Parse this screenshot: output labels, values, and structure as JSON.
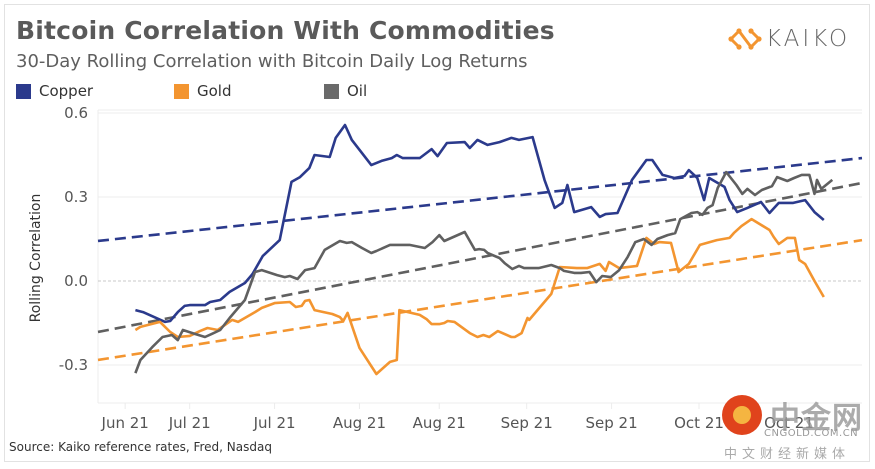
{
  "header": {
    "title": "Bitcoin Correlation With Commodities",
    "subtitle": "30-Day Rolling Correlation with Bitcoin Daily Log Returns",
    "logo_text": "KAIKO"
  },
  "footer": {
    "source": "Source: Kaiko reference rates, Fred, Nasdaq"
  },
  "watermark": {
    "name_cn": "中金网",
    "url": "CNGOLD.COM.CN",
    "tagline": "中文财经新媒体"
  },
  "colors": {
    "copper": "#2b3a8c",
    "gold": "#f39530",
    "oil": "#606060",
    "grid": "#ececec",
    "zero_line": "#c8c8c8"
  },
  "chart_data": {
    "type": "line",
    "title": "Bitcoin Correlation With Commodities",
    "subtitle": "30-Day Rolling Correlation with Bitcoin Daily Log Returns",
    "xlabel": "",
    "ylabel": "Rolling Correlation",
    "ylim": [
      -0.43,
      0.61
    ],
    "xlim": [
      0,
      90
    ],
    "yticks": [
      0.6,
      0.3,
      0.0,
      -0.3
    ],
    "ytick_labels": [
      "0.6",
      "0.3",
      "0.0",
      "-0.3"
    ],
    "xticks": [
      3.2,
      10.8,
      20.8,
      30.8,
      40.2,
      50.5,
      60.5,
      70.8,
      81.4
    ],
    "xtick_labels": [
      "Jun 21",
      "Jul 21",
      "Jul 21",
      "Aug 21",
      "Aug 21",
      "Sep 21",
      "Sep 21",
      "Oct 21",
      "Oct 21"
    ],
    "grid": true,
    "legend": {
      "placement": "top-left",
      "entries": [
        "Copper",
        "Gold",
        "Oil"
      ]
    },
    "series": [
      {
        "name": "Copper",
        "color_key": "copper",
        "x": [
          4.4,
          5.3,
          7.9,
          8.5,
          9.4,
          10.2,
          10.8,
          12.6,
          13.2,
          14.4,
          15.5,
          17.3,
          18.1,
          18.2,
          19.4,
          21.4,
          22.8,
          23.8,
          24.9,
          25.5,
          27.3,
          28.0,
          29.1,
          29.9,
          32.2,
          33.4,
          34.6,
          35.2,
          35.9,
          37.9,
          39.3,
          40.0,
          41.1,
          43.2,
          43.8,
          44.7,
          45.9,
          47.3,
          48.7,
          49.6,
          51.2,
          52.6,
          53.8,
          54.7,
          55.3,
          56.1,
          58.1,
          59.1,
          59.8,
          61.2,
          62.9,
          64.6,
          65.3,
          66.5,
          67.9,
          69.1,
          69.6,
          70.6,
          71.4,
          72.0,
          73.8,
          74.4,
          75.3,
          76.5,
          78.1,
          79.1,
          80.2,
          81.9,
          83.3,
          84.4,
          85.5
        ],
        "y": [
          -0.104,
          -0.111,
          -0.146,
          -0.143,
          -0.111,
          -0.089,
          -0.086,
          -0.086,
          -0.075,
          -0.068,
          -0.039,
          -0.007,
          0.021,
          0.025,
          0.089,
          0.146,
          0.354,
          0.371,
          0.404,
          0.45,
          0.443,
          0.511,
          0.557,
          0.504,
          0.414,
          0.429,
          0.439,
          0.45,
          0.439,
          0.439,
          0.471,
          0.446,
          0.493,
          0.496,
          0.475,
          0.504,
          0.486,
          0.496,
          0.511,
          0.504,
          0.514,
          0.361,
          0.261,
          0.279,
          0.343,
          0.246,
          0.264,
          0.229,
          0.239,
          0.243,
          0.361,
          0.432,
          0.432,
          0.379,
          0.368,
          0.375,
          0.396,
          0.368,
          0.289,
          0.368,
          0.336,
          0.289,
          0.246,
          0.261,
          0.282,
          0.243,
          0.279,
          0.279,
          0.289,
          0.246,
          0.218
        ]
      },
      {
        "name": "Gold",
        "color_key": "gold",
        "x": [
          4.4,
          5.0,
          7.3,
          8.5,
          9.4,
          10.8,
          12.0,
          12.9,
          14.1,
          15.8,
          16.5,
          18.5,
          19.3,
          20.8,
          22.6,
          23.3,
          24.0,
          24.4,
          24.9,
          25.5,
          27.6,
          28.5,
          28.9,
          29.4,
          30.8,
          32.8,
          34.4,
          35.2,
          35.5,
          37.9,
          38.7,
          39.3,
          40.2,
          40.8,
          41.2,
          42.0,
          43.8,
          44.7,
          45.4,
          46.1,
          47.1,
          48.7,
          49.1,
          49.9,
          50.6,
          50.8,
          53.4,
          54.4,
          56.4,
          57.6,
          59.1,
          59.8,
          60.2,
          61.4,
          63.5,
          64.6,
          65.5,
          66.1,
          67.5,
          68.4,
          69.6,
          70.9,
          72.9,
          74.4,
          74.9,
          75.8,
          77.0,
          79.1,
          79.6,
          80.2,
          81.2,
          82.1,
          82.6,
          83.3,
          84.4,
          85.5
        ],
        "y": [
          -0.175,
          -0.164,
          -0.146,
          -0.182,
          -0.2,
          -0.196,
          -0.179,
          -0.168,
          -0.175,
          -0.139,
          -0.146,
          -0.111,
          -0.096,
          -0.079,
          -0.075,
          -0.093,
          -0.089,
          -0.071,
          -0.068,
          -0.104,
          -0.118,
          -0.129,
          -0.143,
          -0.114,
          -0.239,
          -0.332,
          -0.289,
          -0.282,
          -0.104,
          -0.121,
          -0.136,
          -0.154,
          -0.154,
          -0.15,
          -0.143,
          -0.146,
          -0.186,
          -0.2,
          -0.193,
          -0.2,
          -0.179,
          -0.2,
          -0.2,
          -0.186,
          -0.132,
          -0.139,
          -0.046,
          0.05,
          0.046,
          0.046,
          0.061,
          0.036,
          0.068,
          0.046,
          0.054,
          0.154,
          0.132,
          0.139,
          0.136,
          0.032,
          0.061,
          0.129,
          0.146,
          0.154,
          0.171,
          0.196,
          0.221,
          0.182,
          0.157,
          0.132,
          0.154,
          0.154,
          0.075,
          0.061,
          0.0,
          -0.057
        ]
      },
      {
        "name": "Oil",
        "color_key": "oil",
        "x": [
          4.4,
          5.0,
          6.4,
          7.6,
          8.7,
          9.4,
          10.0,
          11.4,
          12.6,
          13.4,
          14.4,
          15.5,
          17.3,
          18.5,
          19.3,
          21.1,
          22.0,
          22.6,
          23.5,
          24.4,
          25.5,
          26.7,
          28.5,
          29.3,
          29.9,
          31.1,
          32.2,
          32.8,
          34.4,
          36.7,
          38.5,
          39.4,
          40.2,
          40.8,
          43.2,
          44.4,
          44.9,
          45.5,
          45.9,
          47.3,
          47.9,
          48.8,
          49.6,
          50.2,
          51.9,
          53.4,
          54.4,
          54.9,
          56.1,
          56.9,
          57.9,
          58.7,
          59.4,
          60.4,
          61.4,
          62.4,
          63.3,
          64.3,
          65.2,
          65.9,
          67.1,
          68.0,
          68.6,
          69.9,
          70.6,
          71.2,
          71.8,
          72.4,
          73.0,
          74.0,
          75.2,
          75.9,
          76.5,
          77.4,
          78.2,
          79.4,
          80.0,
          81.2,
          82.0,
          82.9,
          83.8,
          84.4,
          84.7,
          85.2,
          86.5
        ],
        "y": [
          -0.329,
          -0.282,
          -0.236,
          -0.2,
          -0.193,
          -0.211,
          -0.175,
          -0.189,
          -0.2,
          -0.189,
          -0.175,
          -0.132,
          -0.068,
          0.032,
          0.039,
          0.021,
          0.014,
          0.018,
          0.007,
          0.039,
          0.046,
          0.111,
          0.143,
          0.136,
          0.139,
          0.118,
          0.1,
          0.107,
          0.129,
          0.129,
          0.118,
          0.139,
          0.164,
          0.143,
          0.175,
          0.111,
          0.114,
          0.111,
          0.1,
          0.082,
          0.064,
          0.043,
          0.054,
          0.046,
          0.046,
          0.057,
          0.046,
          0.036,
          0.029,
          0.029,
          0.032,
          -0.004,
          0.018,
          0.014,
          0.039,
          0.086,
          0.139,
          0.15,
          0.129,
          0.15,
          0.164,
          0.171,
          0.221,
          0.243,
          0.246,
          0.236,
          0.261,
          0.271,
          0.332,
          0.389,
          0.343,
          0.311,
          0.329,
          0.307,
          0.325,
          0.339,
          0.371,
          0.357,
          0.368,
          0.379,
          0.379,
          0.311,
          0.361,
          0.329,
          0.361
        ]
      }
    ],
    "trendlines": [
      {
        "name": "Copper trend",
        "color_key": "copper",
        "style": "dashed",
        "x": [
          0,
          90
        ],
        "y": [
          0.143,
          0.439
        ]
      },
      {
        "name": "Oil trend",
        "color_key": "oil",
        "style": "dashed",
        "x": [
          0,
          90
        ],
        "y": [
          -0.182,
          0.35
        ]
      },
      {
        "name": "Gold trend",
        "color_key": "gold",
        "style": "dashed",
        "x": [
          0,
          90
        ],
        "y": [
          -0.282,
          0.146
        ]
      }
    ]
  }
}
